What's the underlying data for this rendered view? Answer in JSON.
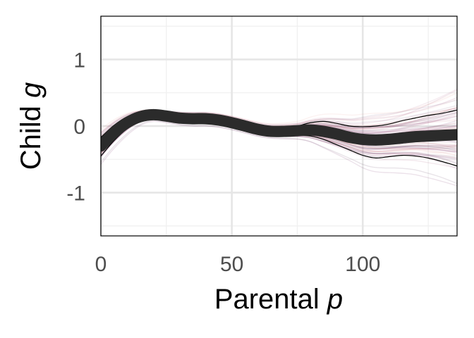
{
  "chart_data": {
    "type": "line",
    "title": "",
    "xlabel": {
      "text": "Parental ",
      "var": "p"
    },
    "ylabel": {
      "text": "Child ",
      "var": "g"
    },
    "xlim": [
      0,
      136
    ],
    "ylim": [
      -1.65,
      1.65
    ],
    "x_ticks": [
      0,
      50,
      100
    ],
    "x_tick_labels": [
      "0",
      "50",
      "100"
    ],
    "y_ticks": [
      -1,
      0,
      1
    ],
    "y_tick_labels": [
      "-1",
      "0",
      "1"
    ],
    "grid": true,
    "legend": "none",
    "colors": {
      "mean_line": "#2b2b2b",
      "band_line": "#000000",
      "sample_palette": [
        "#3b0f3f",
        "#6a1f5c",
        "#9c3f6e",
        "#c76b7a",
        "#e8a9a0"
      ],
      "grid_major": "#e6e6e6",
      "grid_minor": "#f0f0f0"
    },
    "series": [
      {
        "role": "mean",
        "x": [
          0,
          5,
          10,
          15,
          20,
          25,
          30,
          35,
          40,
          45,
          50,
          55,
          60,
          65,
          70,
          75,
          80,
          85,
          90,
          95,
          100,
          105,
          110,
          115,
          120,
          125,
          130,
          136
        ],
        "values": [
          -0.3,
          -0.1,
          0.05,
          0.14,
          0.17,
          0.15,
          0.12,
          0.11,
          0.11,
          0.09,
          0.05,
          0.0,
          -0.05,
          -0.08,
          -0.08,
          -0.07,
          -0.06,
          -0.08,
          -0.12,
          -0.17,
          -0.2,
          -0.21,
          -0.2,
          -0.18,
          -0.16,
          -0.15,
          -0.14,
          -0.13
        ]
      },
      {
        "role": "upper-band",
        "x": [
          0,
          5,
          10,
          15,
          20,
          25,
          30,
          35,
          40,
          45,
          50,
          55,
          60,
          65,
          70,
          75,
          80,
          85,
          90,
          95,
          100,
          105,
          110,
          115,
          120,
          125,
          130,
          136
        ],
        "values": [
          -0.17,
          0.01,
          0.14,
          0.2,
          0.22,
          0.2,
          0.18,
          0.17,
          0.17,
          0.15,
          0.11,
          0.06,
          0.01,
          -0.02,
          -0.02,
          0.0,
          0.05,
          0.07,
          0.04,
          0.0,
          -0.01,
          0.0,
          0.03,
          0.08,
          0.12,
          0.16,
          0.19,
          0.24
        ]
      },
      {
        "role": "lower-band",
        "x": [
          0,
          5,
          10,
          15,
          20,
          25,
          30,
          35,
          40,
          45,
          50,
          55,
          60,
          65,
          70,
          75,
          80,
          85,
          90,
          95,
          100,
          105,
          110,
          115,
          120,
          125,
          130,
          136
        ],
        "values": [
          -0.45,
          -0.22,
          -0.04,
          0.08,
          0.12,
          0.1,
          0.07,
          0.05,
          0.05,
          0.03,
          -0.01,
          -0.06,
          -0.11,
          -0.14,
          -0.15,
          -0.14,
          -0.15,
          -0.2,
          -0.28,
          -0.36,
          -0.44,
          -0.48,
          -0.46,
          -0.44,
          -0.45,
          -0.48,
          -0.53,
          -0.6
        ]
      }
    ]
  }
}
